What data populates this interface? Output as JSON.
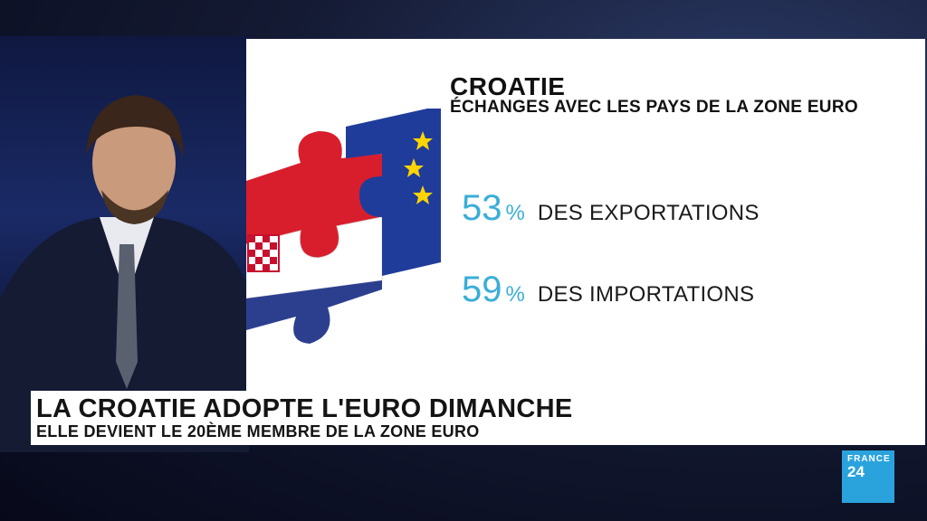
{
  "graphic": {
    "title": "CROATIE",
    "subtitle": "ÉCHANGES AVEC LES PAYS DE LA ZONE EURO",
    "stats": [
      {
        "value": "53",
        "unit": "%",
        "label": "DES EXPORTATIONS"
      },
      {
        "value": "59",
        "unit": "%",
        "label": "DES IMPORTATIONS"
      }
    ],
    "accent_color": "#3aaed8"
  },
  "lower_third": {
    "headline": "LA CROATIE ADOPTE L'EURO DIMANCHE",
    "subline": "ELLE DEVIENT LE 20ÈME MEMBRE DE LA ZONE EURO"
  },
  "logo": {
    "line1": "FRANCE",
    "line2": "24",
    "color": "#2aa3dd"
  }
}
